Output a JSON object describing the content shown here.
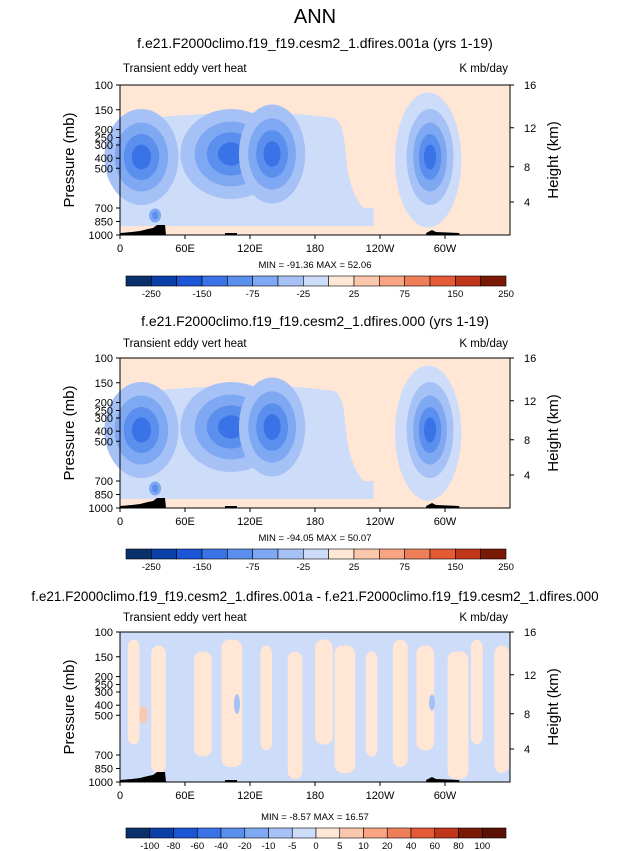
{
  "page_title": "ANN",
  "chart_data": [
    {
      "type": "heatmap",
      "title": "f.e21.F2000climo.f19_f19.cesm2_1.dfires.001a (yrs 1-19)",
      "left_label": "Transient eddy vert heat",
      "units_label": "K mb/day",
      "ylabel": "Pressure (mb)",
      "y2label": "Height (km)",
      "y_ticks": [
        "100",
        "150",
        "200",
        "250",
        "300",
        "400",
        "500",
        "700",
        "850",
        "1000"
      ],
      "y2_ticks": [
        "16",
        "12",
        "8",
        "4"
      ],
      "x_ticks": [
        "0",
        "60E",
        "120E",
        "180",
        "120W",
        "60W"
      ],
      "stats": "MIN = -91.36  MAX = 52.06",
      "colorbar_labels": [
        "-250",
        "-150",
        "-75",
        "-25",
        "25",
        "75",
        "150",
        "250"
      ],
      "grid": false
    },
    {
      "type": "heatmap",
      "title": "f.e21.F2000climo.f19_f19.cesm2_1.dfires.000 (yrs 1-19)",
      "left_label": "Transient eddy vert heat",
      "units_label": "K mb/day",
      "ylabel": "Pressure (mb)",
      "y2label": "Height (km)",
      "y_ticks": [
        "100",
        "150",
        "200",
        "250",
        "300",
        "400",
        "500",
        "700",
        "850",
        "1000"
      ],
      "y2_ticks": [
        "16",
        "12",
        "8",
        "4"
      ],
      "x_ticks": [
        "0",
        "60E",
        "120E",
        "180",
        "120W",
        "60W"
      ],
      "stats": "MIN = -94.05  MAX = 50.07",
      "colorbar_labels": [
        "-250",
        "-150",
        "-75",
        "-25",
        "25",
        "75",
        "150",
        "250"
      ],
      "grid": false
    },
    {
      "type": "heatmap",
      "title": "f.e21.F2000climo.f19_f19.cesm2_1.dfires.001a - f.e21.F2000climo.f19_f19.cesm2_1.dfires.000",
      "left_label": "Transient eddy vert heat",
      "units_label": "K mb/day",
      "ylabel": "Pressure (mb)",
      "y2label": "Height (km)",
      "y_ticks": [
        "100",
        "150",
        "200",
        "250",
        "300",
        "400",
        "500",
        "700",
        "850",
        "1000"
      ],
      "y2_ticks": [
        "16",
        "12",
        "8",
        "4"
      ],
      "x_ticks": [
        "0",
        "60E",
        "120E",
        "180",
        "120W",
        "60W"
      ],
      "stats": "MIN = -8.57  MAX = 16.57",
      "colorbar_labels": [
        "-100",
        "-80",
        "-60",
        "-40",
        "-20",
        "-10",
        "-5",
        "0",
        "5",
        "10",
        "20",
        "40",
        "60",
        "80",
        "100"
      ],
      "grid": false
    }
  ],
  "colors": {
    "abs_bins": [
      "#08306b",
      "#0b3fa8",
      "#1a56d6",
      "#3a73e8",
      "#5b8fee",
      "#7fa8f2",
      "#a6c1f6",
      "#cddcf9",
      "#ffe6d5",
      "#fcc8ad",
      "#f7a583",
      "#ef7f58",
      "#e35a34",
      "#c0361a",
      "#7a1a06"
    ],
    "diff_bins": [
      "#08306b",
      "#0b3fa8",
      "#1a56d6",
      "#3a73e8",
      "#5b8fee",
      "#7fa8f2",
      "#a6c1f6",
      "#cddcf9",
      "#ffe6d5",
      "#fcc8ad",
      "#f7a583",
      "#ef7f58",
      "#e35a34",
      "#c0361a",
      "#7a1a06",
      "#5a1004"
    ],
    "background_light_blue": "#d6e5fa",
    "background_peach": "#fde8da"
  }
}
